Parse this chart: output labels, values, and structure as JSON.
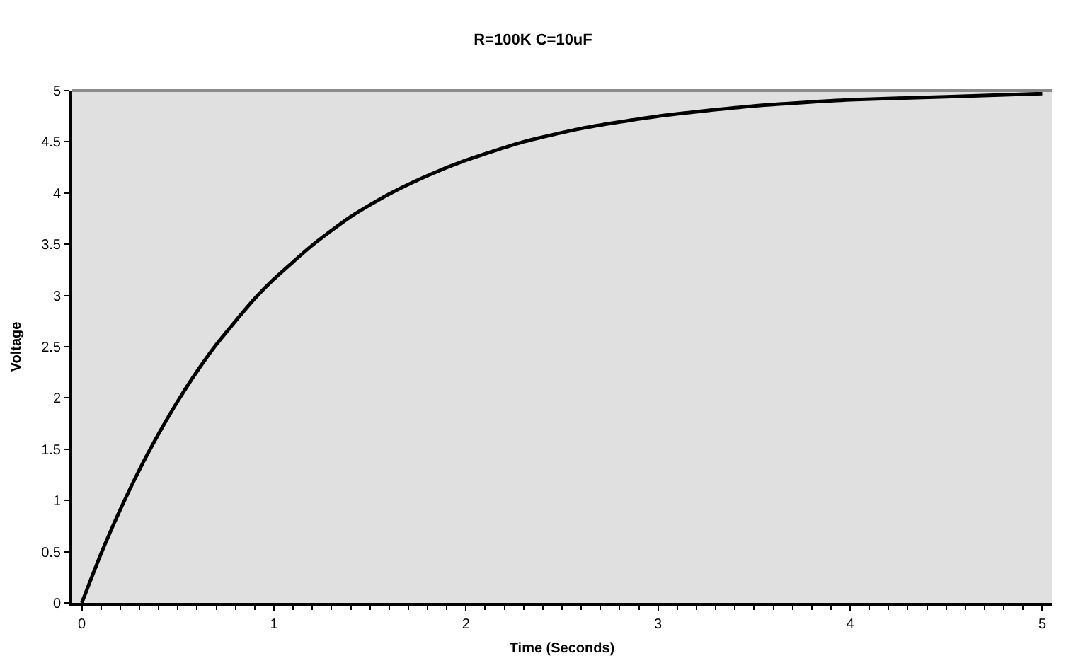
{
  "chart_data": {
    "type": "line",
    "title": "R=100K C=10uF",
    "xlabel": "Time (Seconds)",
    "ylabel": "Voltage",
    "x": [
      0,
      0.1,
      0.2,
      0.3,
      0.4,
      0.5,
      0.6,
      0.7,
      0.8,
      0.9,
      1.0,
      1.2,
      1.4,
      1.6,
      1.8,
      2.0,
      2.3,
      2.6,
      3.0,
      3.5,
      4.0,
      4.5,
      5.0
    ],
    "series": [
      {
        "color": "#000000",
        "values": [
          0,
          0.48,
          0.91,
          1.3,
          1.65,
          1.97,
          2.26,
          2.52,
          2.75,
          2.97,
          3.16,
          3.49,
          3.77,
          3.99,
          4.17,
          4.32,
          4.5,
          4.63,
          4.75,
          4.85,
          4.91,
          4.94,
          4.97
        ]
      }
    ],
    "xlim": [
      -0.05,
      5.05
    ],
    "xticks": [
      0,
      1,
      2,
      3,
      4,
      5
    ],
    "ylim": [
      0,
      5
    ],
    "yticks": [
      0,
      0.5,
      1,
      1.5,
      2,
      2.5,
      3,
      3.5,
      4,
      4.5,
      5
    ],
    "grid": false,
    "marker": "none",
    "line_style": "solid"
  }
}
